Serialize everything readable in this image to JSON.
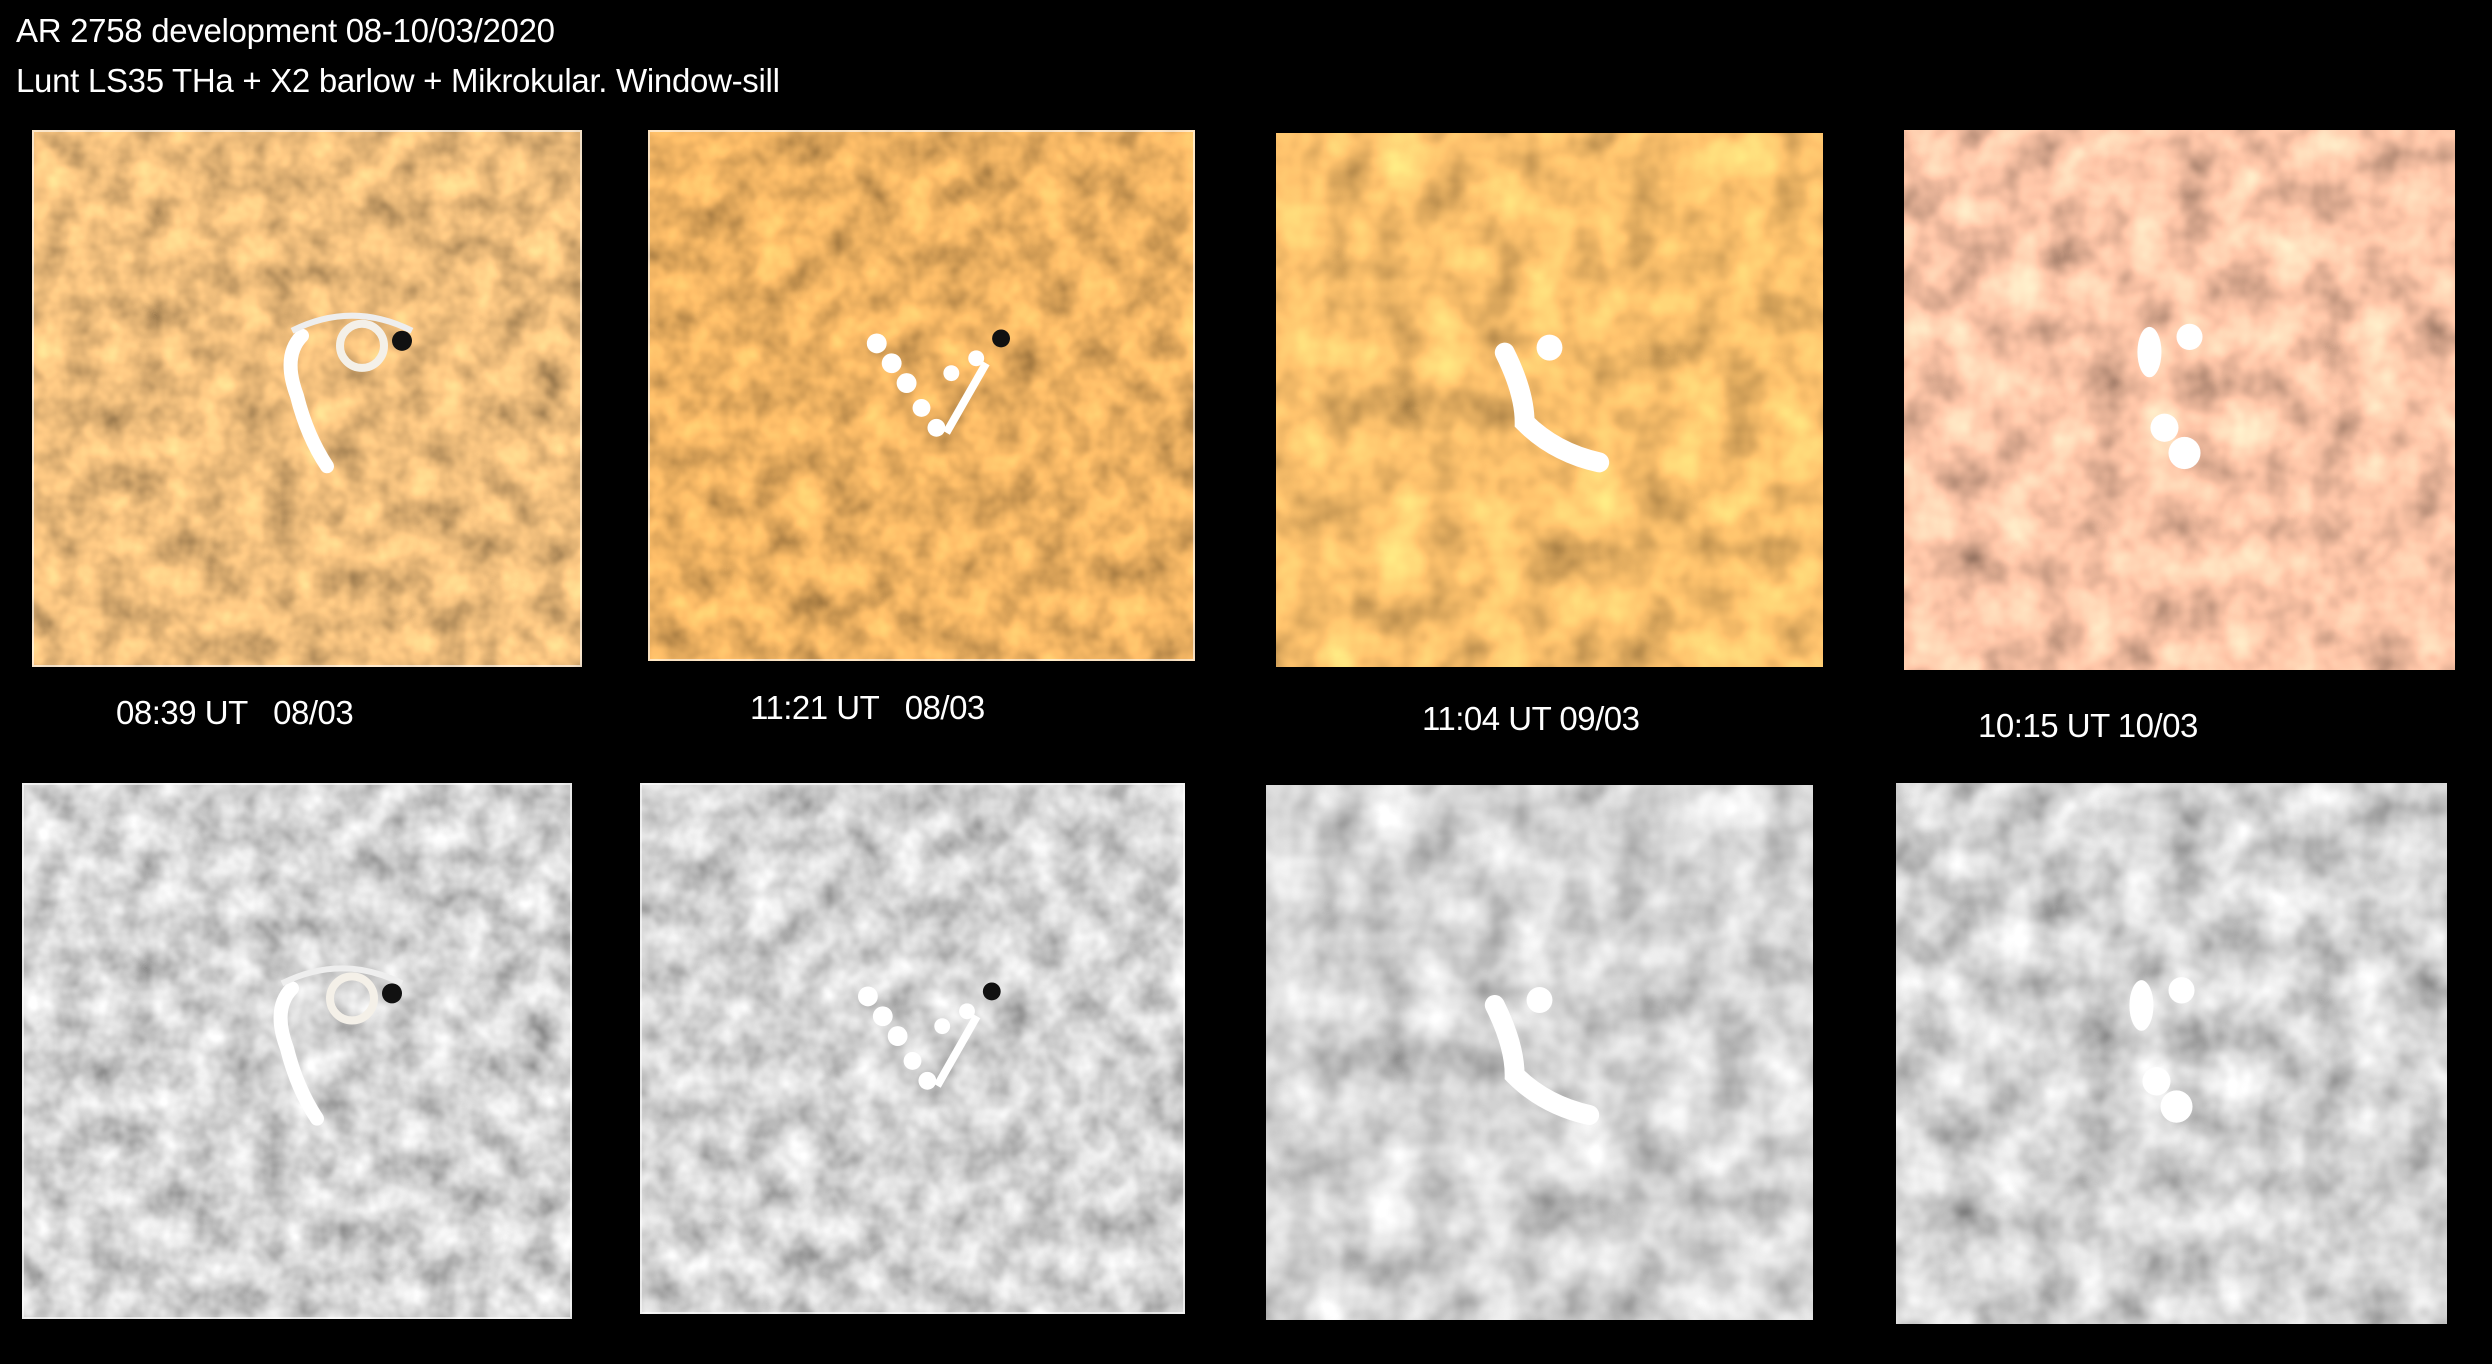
{
  "header": {
    "title": "AR 2758 development 08-10/03/2020",
    "subtitle": "Lunt LS35 THa + X2 barlow + Mikrokular. Window-sill"
  },
  "panels": [
    {
      "label": "08:39 UT   08/03",
      "color_tint": "#c8762e",
      "feature": "ring"
    },
    {
      "label": "11:21 UT   08/03",
      "color_tint": "#c9681c",
      "feature": "vee"
    },
    {
      "label": "11:04 UT 09/03",
      "color_tint": "#e07a22",
      "feature": "arc"
    },
    {
      "label": "10:15 UT 10/03",
      "color_tint": "#e6825a",
      "feature": "pair"
    }
  ],
  "colors": {
    "background": "#000000",
    "text": "#ffffff",
    "mono_tint": "#9a9a9a"
  }
}
